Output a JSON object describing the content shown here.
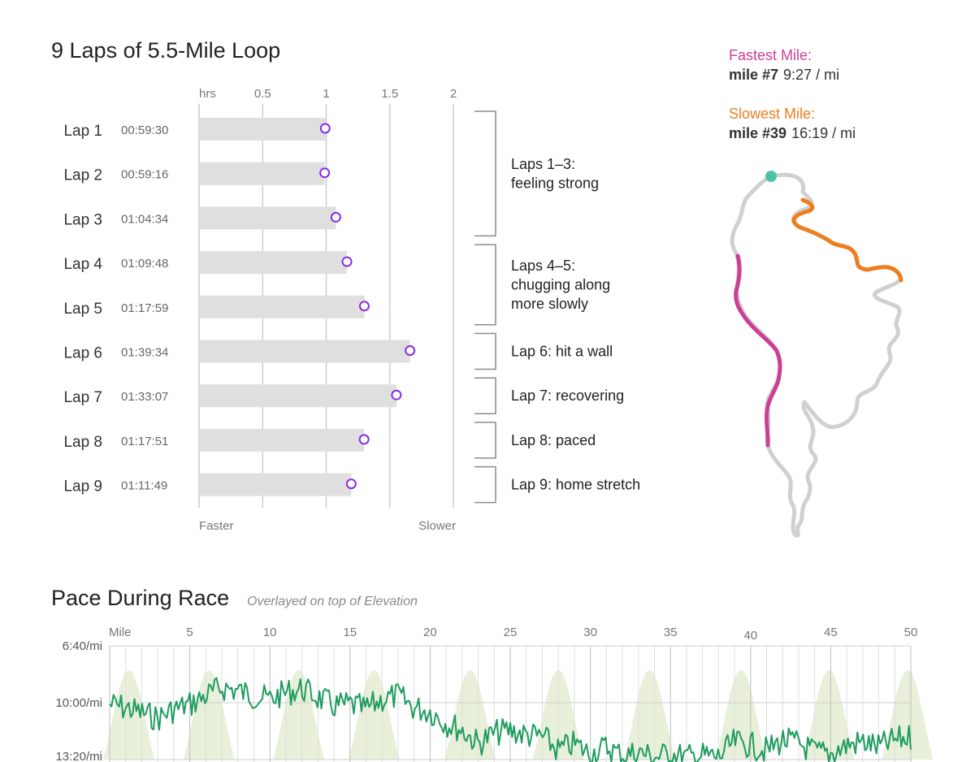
{
  "colors": {
    "bar": "#dfdfe0",
    "marker": "#8a2be2",
    "grid": "#cccccc",
    "bracket": "#8c8c8c",
    "fastest": "#cc3f95",
    "slowest": "#ee7d1e",
    "route": "#d0d0d0",
    "start_dot": "#4fc2a6",
    "pace_line": "#1e9c5f",
    "elevation_fill": "#e8f0da"
  },
  "chart_data": [
    {
      "type": "bar",
      "title": "9 Laps of 5.5-Mile Loop",
      "axis_unit": "hrs",
      "xlim": [
        0,
        2
      ],
      "xticks": [
        "0.5",
        "1",
        "1.5",
        "2"
      ],
      "xtick_values": [
        0.5,
        1,
        1.5,
        2
      ],
      "left_label": "Faster",
      "right_label": "Slower",
      "categories": [
        "Lap 1",
        "Lap 2",
        "Lap 3",
        "Lap 4",
        "Lap 5",
        "Lap 6",
        "Lap 7",
        "Lap 8",
        "Lap 9"
      ],
      "times": [
        "00:59:30",
        "00:59:16",
        "01:04:34",
        "01:09:48",
        "01:17:59",
        "01:39:34",
        "01:33:07",
        "01:17:51",
        "01:11:49"
      ],
      "values": [
        0.992,
        0.988,
        1.076,
        1.163,
        1.3,
        1.659,
        1.552,
        1.298,
        1.197
      ],
      "annotations": [
        {
          "laps": [
            1,
            3
          ],
          "lines": [
            "Laps 1–3:",
            "feeling strong"
          ]
        },
        {
          "laps": [
            4,
            5
          ],
          "lines": [
            "Laps 4–5:",
            "chugging along",
            "more slowly"
          ]
        },
        {
          "laps": [
            6,
            6
          ],
          "lines": [
            "Lap 6: hit a wall"
          ]
        },
        {
          "laps": [
            7,
            7
          ],
          "lines": [
            "Lap 7: recovering"
          ]
        },
        {
          "laps": [
            8,
            8
          ],
          "lines": [
            "Lap 8: paced"
          ]
        },
        {
          "laps": [
            9,
            9
          ],
          "lines": [
            "Lap 9: home stretch"
          ]
        }
      ]
    },
    {
      "type": "line",
      "title": "Pace During Race",
      "subtitle": "Overlayed on top of Elevation",
      "x_label": "Mile",
      "xlim": [
        0,
        50
      ],
      "xticks": [
        "5",
        "10",
        "15",
        "20",
        "25",
        "30",
        "35",
        "40",
        "45",
        "50"
      ],
      "xtick_values": [
        5,
        10,
        15,
        20,
        25,
        30,
        35,
        40,
        45,
        50
      ],
      "ylim_min_per_mile": [
        6.667,
        13.333
      ],
      "yticks": [
        "6:40/mi",
        "10:00/mi",
        "13:20/mi"
      ],
      "ytick_values": [
        6.667,
        10,
        13.333
      ],
      "pace_min_per_mile": [
        10.1,
        10.3,
        10.6,
        10.9,
        10.4,
        10.1,
        9.6,
        9.1,
        9.3,
        9.6,
        9.8,
        9.4,
        9.2,
        9.7,
        10.2,
        10.1,
        10.4,
        9.8,
        9.6,
        10.3,
        10.5,
        11.2,
        11.6,
        12.4,
        11.8,
        11.6,
        11.9,
        12.0,
        12.8,
        12.4,
        13.0,
        12.6,
        13.1,
        12.9,
        13.2,
        13.0,
        13.2,
        13.1,
        13.2,
        12.3,
        12.5,
        12.8,
        12.2,
        12.4,
        12.9,
        13.0,
        12.5,
        12.3,
        12.6,
        12.2,
        12.0
      ],
      "elevation_peaks_mile": [
        1.2,
        6.2,
        11.8,
        16.5,
        22.5,
        28.0,
        33.7,
        39.4,
        44.9,
        49.8
      ]
    }
  ],
  "records": {
    "fastest": {
      "label": "Fastest Mile:",
      "mile": "mile #7",
      "pace": "9:27 / mi"
    },
    "slowest": {
      "label": "Slowest Mile:",
      "mile": "mile #39",
      "pace": "16:19 / mi"
    }
  }
}
